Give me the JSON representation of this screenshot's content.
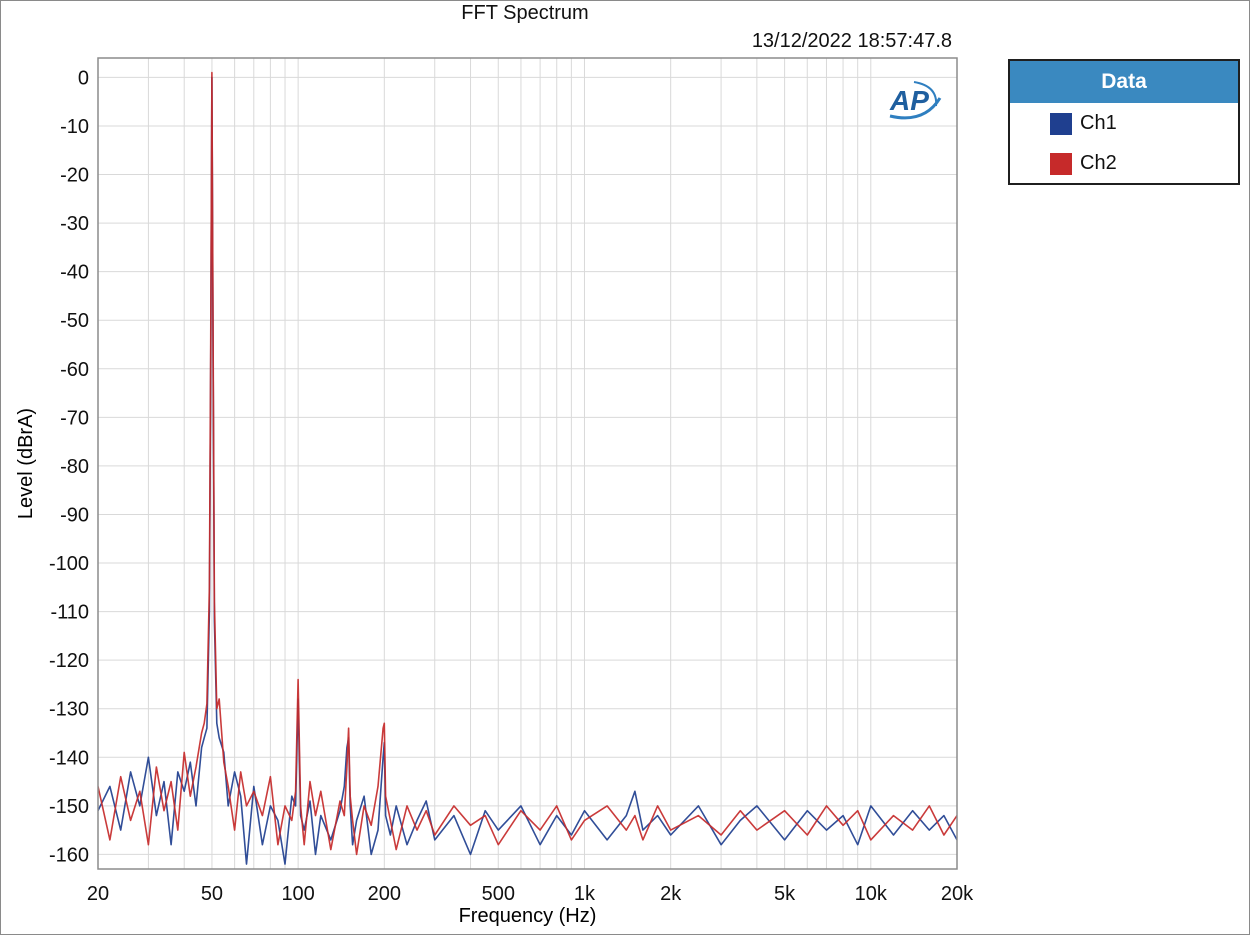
{
  "header": {
    "title": "FFT Spectrum",
    "timestamp": "13/12/2022 18:57:47.8"
  },
  "legend": {
    "title": "Data",
    "items": [
      {
        "label": "Ch1",
        "color": "#1f3f8f"
      },
      {
        "label": "Ch2",
        "color": "#c62a2a"
      }
    ]
  },
  "logo": {
    "text": "AP"
  },
  "chart_data": {
    "type": "line",
    "xlabel": "Frequency (Hz)",
    "ylabel": "Level (dBrA)",
    "xscale": "log",
    "xlim": [
      20,
      20000
    ],
    "ylim": [
      -163,
      4
    ],
    "grid": true,
    "legend_position": "right-outside",
    "xticks": [
      {
        "value": 20,
        "label": "20"
      },
      {
        "value": 50,
        "label": "50"
      },
      {
        "value": 100,
        "label": "100"
      },
      {
        "value": 200,
        "label": "200"
      },
      {
        "value": 500,
        "label": "500"
      },
      {
        "value": 1000,
        "label": "1k"
      },
      {
        "value": 2000,
        "label": "2k"
      },
      {
        "value": 5000,
        "label": "5k"
      },
      {
        "value": 10000,
        "label": "10k"
      },
      {
        "value": 20000,
        "label": "20k"
      }
    ],
    "yticks": [
      0,
      -10,
      -20,
      -30,
      -40,
      -50,
      -60,
      -70,
      -80,
      -90,
      -100,
      -110,
      -120,
      -130,
      -140,
      -150,
      -160
    ],
    "series": [
      {
        "name": "Ch1",
        "color": "#1f3f8f",
        "x": [
          20,
          22,
          24,
          26,
          28,
          30,
          32,
          34,
          36,
          38,
          40,
          42,
          44,
          46,
          47,
          48,
          49,
          49.5,
          50,
          50.5,
          51,
          52,
          53,
          55,
          57,
          60,
          63,
          66,
          70,
          75,
          80,
          85,
          90,
          95,
          98,
          100,
          102,
          105,
          110,
          115,
          120,
          130,
          140,
          145,
          148,
          150,
          152,
          155,
          160,
          170,
          180,
          190,
          198,
          200,
          202,
          210,
          220,
          240,
          260,
          280,
          300,
          350,
          400,
          450,
          500,
          600,
          700,
          800,
          900,
          1000,
          1200,
          1400,
          1500,
          1600,
          1800,
          2000,
          2500,
          3000,
          3500,
          4000,
          5000,
          6000,
          7000,
          8000,
          9000,
          10000,
          12000,
          14000,
          16000,
          18000,
          20000
        ],
        "y": [
          -151,
          -146,
          -155,
          -143,
          -150,
          -140,
          -152,
          -145,
          -158,
          -143,
          -147,
          -141,
          -150,
          -138,
          -136,
          -134,
          -110,
          -60,
          0,
          -62,
          -112,
          -133,
          -136,
          -139,
          -150,
          -143,
          -148,
          -162,
          -146,
          -158,
          -150,
          -153,
          -162,
          -148,
          -150,
          -128,
          -152,
          -155,
          -149,
          -160,
          -152,
          -157,
          -151,
          -146,
          -138,
          -136,
          -150,
          -158,
          -153,
          -148,
          -160,
          -155,
          -140,
          -137,
          -152,
          -156,
          -150,
          -158,
          -153,
          -149,
          -157,
          -152,
          -160,
          -151,
          -155,
          -150,
          -158,
          -152,
          -156,
          -151,
          -157,
          -152,
          -147,
          -155,
          -152,
          -156,
          -150,
          -158,
          -153,
          -150,
          -157,
          -151,
          -155,
          -152,
          -158,
          -150,
          -156,
          -151,
          -155,
          -152,
          -157
        ]
      },
      {
        "name": "Ch2",
        "color": "#c62a2a",
        "x": [
          20,
          22,
          24,
          26,
          28,
          30,
          32,
          34,
          36,
          38,
          40,
          42,
          44,
          46,
          47,
          48,
          49,
          49.5,
          50,
          50.5,
          51,
          52,
          53,
          55,
          57,
          60,
          63,
          66,
          70,
          75,
          80,
          85,
          90,
          95,
          98,
          100,
          102,
          105,
          110,
          115,
          120,
          130,
          140,
          145,
          148,
          150,
          152,
          155,
          160,
          170,
          180,
          190,
          198,
          200,
          202,
          210,
          220,
          240,
          260,
          280,
          300,
          350,
          400,
          450,
          500,
          600,
          700,
          800,
          900,
          1000,
          1200,
          1400,
          1500,
          1600,
          1800,
          2000,
          2500,
          3000,
          3500,
          4000,
          5000,
          6000,
          7000,
          8000,
          9000,
          10000,
          12000,
          14000,
          16000,
          18000,
          20000
        ],
        "y": [
          -146,
          -157,
          -144,
          -153,
          -147,
          -158,
          -142,
          -151,
          -145,
          -155,
          -139,
          -148,
          -142,
          -135,
          -133,
          -129,
          -105,
          -55,
          1,
          -58,
          -108,
          -130,
          -128,
          -141,
          -146,
          -155,
          -143,
          -150,
          -147,
          -152,
          -144,
          -158,
          -150,
          -153,
          -147,
          -124,
          -150,
          -158,
          -145,
          -152,
          -147,
          -159,
          -149,
          -152,
          -142,
          -134,
          -148,
          -153,
          -160,
          -150,
          -154,
          -146,
          -134,
          -133,
          -148,
          -153,
          -159,
          -150,
          -155,
          -151,
          -156,
          -150,
          -154,
          -152,
          -158,
          -151,
          -155,
          -150,
          -157,
          -153,
          -150,
          -155,
          -152,
          -157,
          -150,
          -155,
          -152,
          -156,
          -151,
          -155,
          -151,
          -156,
          -150,
          -154,
          -151,
          -157,
          -152,
          -155,
          -150,
          -156,
          -152
        ]
      }
    ]
  }
}
